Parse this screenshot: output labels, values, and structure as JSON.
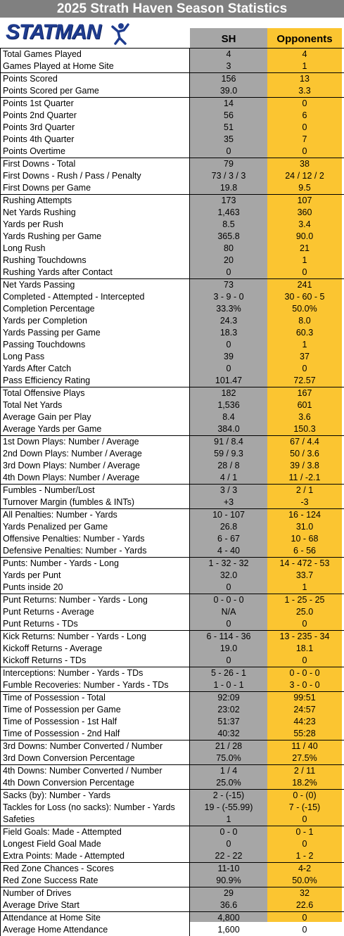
{
  "header": {
    "title": "2025 Strath Haven Season Statistics",
    "logo": "STATMAN",
    "col_sh": "SH",
    "col_opp": "Opponents"
  },
  "table": {
    "groups": [
      {
        "rows": [
          [
            "Total Games Played",
            "4",
            "4"
          ],
          [
            "Games Played at Home Site",
            "3",
            "1"
          ]
        ]
      },
      {
        "rows": [
          [
            "Points Scored",
            "156",
            "13"
          ],
          [
            "Points Scored per Game",
            "39.0",
            "3.3"
          ]
        ]
      },
      {
        "rows": [
          [
            "Points 1st Quarter",
            "14",
            "0"
          ],
          [
            "Points 2nd Quarter",
            "56",
            "6"
          ],
          [
            "Points 3rd Quarter",
            "51",
            "0"
          ],
          [
            "Points 4th Quarter",
            "35",
            "7"
          ],
          [
            "Points Overtime",
            "0",
            "0"
          ]
        ]
      },
      {
        "rows": [
          [
            "First Downs - Total",
            "79",
            "38"
          ],
          [
            "First Downs - Rush / Pass / Penalty",
            "73 / 3 / 3",
            "24 / 12 / 2"
          ],
          [
            "First Downs per Game",
            "19.8",
            "9.5"
          ]
        ]
      },
      {
        "rows": [
          [
            "Rushing Attempts",
            "173",
            "107"
          ],
          [
            "Net Yards Rushing",
            "1,463",
            "360"
          ],
          [
            "Yards per Rush",
            "8.5",
            "3.4"
          ],
          [
            "Yards Rushing per Game",
            "365.8",
            "90.0"
          ],
          [
            "Long Rush",
            "80",
            "21"
          ],
          [
            "Rushing Touchdowns",
            "20",
            "1"
          ],
          [
            "Rushing Yards after Contact",
            "0",
            "0"
          ]
        ]
      },
      {
        "rows": [
          [
            "Net Yards Passing",
            "73",
            "241"
          ],
          [
            "Completed - Attempted - Intercepted",
            "3 - 9 - 0",
            "30 - 60 - 5"
          ],
          [
            "Completion Percentage",
            "33.3%",
            "50.0%"
          ],
          [
            "Yards per Completion",
            "24.3",
            "8.0"
          ],
          [
            "Yards Passing per Game",
            "18.3",
            "60.3"
          ],
          [
            "Passing Touchdowns",
            "0",
            "1"
          ],
          [
            "Long Pass",
            "39",
            "37"
          ],
          [
            "Yards After Catch",
            "0",
            "0"
          ],
          [
            "Pass Efficiency Rating",
            "101.47",
            "72.57"
          ]
        ]
      },
      {
        "rows": [
          [
            "Total Offensive Plays",
            "182",
            "167"
          ],
          [
            "Total Net Yards",
            "1,536",
            "601"
          ],
          [
            "Average Gain per Play",
            "8.4",
            "3.6"
          ],
          [
            "Average Yards per Game",
            "384.0",
            "150.3"
          ]
        ]
      },
      {
        "rows": [
          [
            "1st Down Plays:  Number / Average",
            "91 / 8.4",
            "67 / 4.4"
          ],
          [
            "2nd Down Plays:  Number / Average",
            "59 / 9.3",
            "50 / 3.6"
          ],
          [
            "3rd Down Plays:  Number / Average",
            "28 / 8",
            "39 / 3.8"
          ],
          [
            "4th Down Plays:  Number / Average",
            "4 / 1",
            "11 / -2.1"
          ]
        ]
      },
      {
        "rows": [
          [
            "Fumbles - Number/Lost",
            "3 / 3",
            "2 / 1"
          ],
          [
            "Turnover Margin (fumbles & INTs)",
            "+3",
            "-3"
          ]
        ]
      },
      {
        "rows": [
          [
            "All Penalties:  Number - Yards",
            "10 - 107",
            "16 - 124"
          ],
          [
            "Yards Penalized per Game",
            "26.8",
            "31.0"
          ],
          [
            "Offensive Penalties:  Number - Yards",
            "6 - 67",
            "10 - 68"
          ],
          [
            "Defensive Penalties:  Number - Yards",
            "4 - 40",
            "6 - 56"
          ]
        ]
      },
      {
        "rows": [
          [
            "Punts:  Number - Yards - Long",
            "1 - 32 - 32",
            "14 - 472 - 53"
          ],
          [
            "Yards per Punt",
            "32.0",
            "33.7"
          ],
          [
            "Punts inside 20",
            "0",
            "1"
          ]
        ]
      },
      {
        "rows": [
          [
            "Punt Returns:  Number - Yards - Long",
            "0 - 0 - 0",
            "1 - 25 - 25"
          ],
          [
            "Punt Returns - Average",
            "N/A",
            "25.0"
          ],
          [
            "Punt Returns - TDs",
            "0",
            "0"
          ]
        ]
      },
      {
        "rows": [
          [
            "Kick Returns:  Number - Yards - Long",
            "6 - 114 - 36",
            "13 - 235 - 34"
          ],
          [
            "Kickoff Returns - Average",
            "19.0",
            "18.1"
          ],
          [
            "Kickoff Returns - TDs",
            "0",
            "0"
          ]
        ]
      },
      {
        "rows": [
          [
            "Interceptions:  Number - Yards - TDs",
            "5 - 26 - 1",
            "0 - 0 - 0"
          ],
          [
            "Fumble Recoveries:  Number - Yards - TDs",
            "1 - 0 - 1",
            "3 - 0 - 0"
          ]
        ]
      },
      {
        "rows": [
          [
            "Time of Possession - Total",
            "92:09",
            "99:51"
          ],
          [
            "Time of Possession per Game",
            "23:02",
            "24:57"
          ],
          [
            "Time of Possession - 1st Half",
            "51:37",
            "44:23"
          ],
          [
            "Time of Possession - 2nd Half",
            "40:32",
            "55:28"
          ]
        ]
      },
      {
        "rows": [
          [
            "3rd Downs:  Number Converted / Number",
            "21 / 28",
            "11 / 40"
          ],
          [
            "3rd Down Conversion Percentage",
            "75.0%",
            "27.5%"
          ]
        ]
      },
      {
        "rows": [
          [
            "4th Downs:  Number Converted / Number",
            "1 / 4",
            "2 / 11"
          ],
          [
            "4th Down Conversion Percentage",
            "25.0%",
            "18.2%"
          ]
        ]
      },
      {
        "rows": [
          [
            "Sacks (by):  Number - Yards",
            "2 - (-15)",
            "0 - (0)"
          ],
          [
            "Tackles for Loss (no sacks):  Number - Yards",
            "19 - (-55.99)",
            "7 - (-15)"
          ],
          [
            "Safeties",
            "1",
            "0"
          ]
        ]
      },
      {
        "rows": [
          [
            "Field Goals:  Made - Attempted",
            "0 - 0",
            "0 - 1"
          ],
          [
            "Longest Field Goal Made",
            "0",
            "0"
          ],
          [
            "Extra Points:  Made - Attempted",
            "22 - 22",
            "1 - 2"
          ]
        ]
      },
      {
        "rows": [
          [
            "Red Zone Chances - Scores",
            "11-10",
            "4-2"
          ],
          [
            "Red Zone Success Rate",
            "90.9%",
            "50.0%"
          ]
        ]
      },
      {
        "rows": [
          [
            "Number of Drives",
            "29",
            "32"
          ],
          [
            "Average Drive Start",
            "36.6",
            "22.6"
          ]
        ]
      },
      {
        "rows": [
          [
            "Attendance at Home Site",
            "4,800",
            "0"
          ],
          [
            "Average Home Attendance",
            "1,600",
            "0"
          ]
        ]
      }
    ]
  }
}
